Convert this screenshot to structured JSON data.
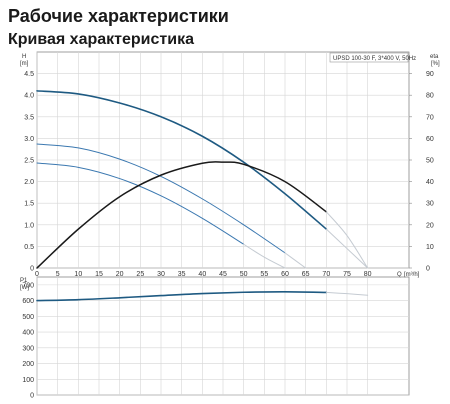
{
  "page": {
    "title": "Рабочие характеристики",
    "section_title": "Кривая характеристика"
  },
  "colors": {
    "main_curve": "#1e5a82",
    "reduced_curve": "#3b78b0",
    "extension": "#c5cbd2",
    "efficiency": "#1a1a1a",
    "grid": "#d6d6d6"
  },
  "chart_data": [
    {
      "type": "line",
      "title": "",
      "legend": "UPSD 100-30 F, 3*400 V, 50Hz",
      "legend_position": "top-right",
      "grid": true,
      "xlim": [
        0,
        90
      ],
      "x_ticks": [
        0,
        5,
        10,
        15,
        20,
        25,
        30,
        35,
        40,
        45,
        50,
        55,
        60,
        65,
        70,
        75,
        80
      ],
      "x_tick_labels": [
        "0",
        "5",
        "10",
        "15",
        "20",
        "25",
        "30",
        "35",
        "40",
        "45",
        "50",
        "55",
        "60",
        "65",
        "70",
        "75",
        "80"
      ],
      "xlabel_symbol": "Q",
      "xlabel_unit": "[m³/h]",
      "ylim": [
        0,
        5
      ],
      "y_ticks": [
        0,
        0.5,
        1.0,
        1.5,
        2.0,
        2.5,
        3.0,
        3.5,
        4.0,
        4.5
      ],
      "y_tick_labels": [
        "0",
        "0.5",
        "1.0",
        "1.5",
        "2.0",
        "2.5",
        "3.0",
        "3.5",
        "4.0",
        "4.5"
      ],
      "ylabel_symbol": "H",
      "ylabel_unit": "[m]",
      "y2lim": [
        0,
        100
      ],
      "y2_ticks": [
        0,
        10,
        20,
        30,
        40,
        50,
        60,
        70,
        80,
        90
      ],
      "y2_tick_labels": [
        "0",
        "10",
        "20",
        "30",
        "40",
        "50",
        "60",
        "70",
        "80",
        "90"
      ],
      "y2label_symbol": "eta",
      "y2label_unit": "[%]",
      "series": [
        {
          "axis": "left",
          "role": "main",
          "x": [
            0,
            10,
            20,
            30,
            40,
            50,
            60,
            70
          ],
          "y": [
            4.1,
            4.03,
            3.82,
            3.5,
            3.05,
            2.45,
            1.72,
            0.9
          ]
        },
        {
          "axis": "left",
          "role": "extension",
          "x": [
            70,
            75,
            80
          ],
          "y": [
            0.9,
            0.45,
            0.0
          ]
        },
        {
          "axis": "left",
          "role": "reduced",
          "x": [
            0,
            10,
            20,
            30,
            40,
            50,
            60
          ],
          "y": [
            2.87,
            2.78,
            2.52,
            2.12,
            1.6,
            1.0,
            0.35
          ]
        },
        {
          "axis": "left",
          "role": "extension",
          "x": [
            60,
            65
          ],
          "y": [
            0.35,
            0.0
          ]
        },
        {
          "axis": "left",
          "role": "reduced",
          "x": [
            0,
            10,
            20,
            30,
            40,
            50
          ],
          "y": [
            2.43,
            2.33,
            2.07,
            1.67,
            1.15,
            0.55
          ]
        },
        {
          "axis": "left",
          "role": "extension",
          "x": [
            50,
            55,
            60
          ],
          "y": [
            0.55,
            0.25,
            0.0
          ]
        },
        {
          "axis": "right",
          "role": "efficiency",
          "x": [
            0,
            10,
            20,
            30,
            40,
            45,
            50,
            60,
            70
          ],
          "y": [
            0,
            18,
            33,
            43,
            48.5,
            49,
            48,
            40,
            26
          ]
        },
        {
          "axis": "right",
          "role": "extension",
          "x": [
            70,
            75,
            80
          ],
          "y": [
            26,
            15,
            0
          ]
        }
      ]
    },
    {
      "type": "line",
      "title": "",
      "grid": true,
      "xlim": [
        0,
        90
      ],
      "ylim": [
        0,
        750
      ],
      "y_ticks": [
        0,
        100,
        200,
        300,
        400,
        500,
        600,
        700
      ],
      "y_tick_labels": [
        "0",
        "100",
        "200",
        "300",
        "400",
        "500",
        "600",
        "700"
      ],
      "ylabel_symbol": "P1",
      "ylabel_unit": "[W]",
      "series": [
        {
          "axis": "left",
          "role": "main",
          "x": [
            0,
            10,
            20,
            30,
            40,
            50,
            60,
            70
          ],
          "y": [
            600,
            606,
            618,
            632,
            645,
            653,
            656,
            652
          ]
        },
        {
          "axis": "left",
          "role": "extension",
          "x": [
            70,
            75,
            80
          ],
          "y": [
            652,
            644,
            634
          ]
        }
      ]
    }
  ]
}
